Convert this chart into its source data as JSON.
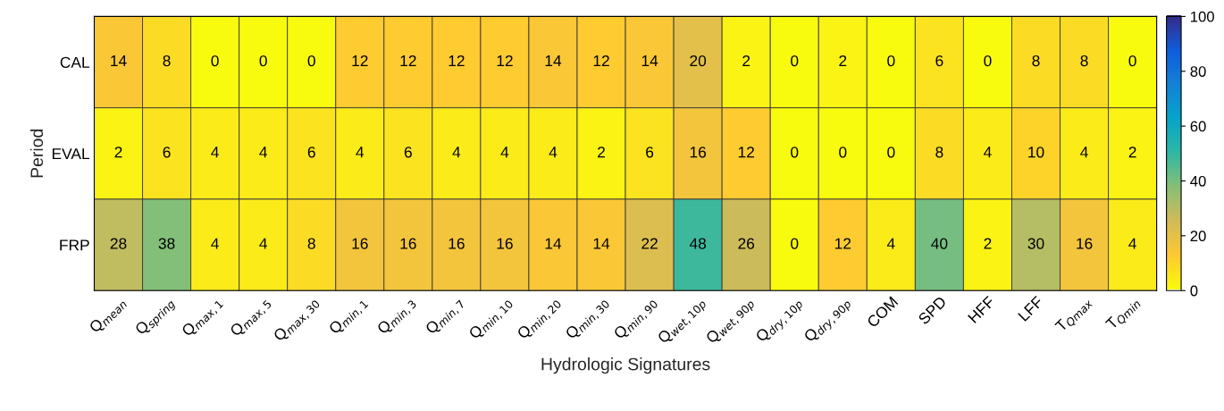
{
  "chart_data": {
    "type": "heatmap",
    "xlabel": "Hydrologic Signatures",
    "ylabel": "Period",
    "categories": [
      "Q$_{mean}$",
      "Q$_{spring}$",
      "Q$_{max,1}$",
      "Q$_{max,5}$",
      "Q$_{max,30}$",
      "Q$_{min,1}$",
      "Q$_{min,3}$",
      "Q$_{min,7}$",
      "Q$_{min,10}$",
      "Q$_{min,20}$",
      "Q$_{min,30}$",
      "Q$_{min,90}$",
      "Q$_{wet,10p}$",
      "Q$_{wet,90p}$",
      "Q$_{dry,10p}$",
      "Q$_{dry,90p}$",
      "COM",
      "SPD",
      "HFF",
      "LFF",
      "T$_{Qmax}$",
      "T$_{Qmin}$"
    ],
    "y_categories": [
      "CAL",
      "EVAL",
      "FRP"
    ],
    "cells": [
      [
        14,
        8,
        0,
        0,
        0,
        12,
        12,
        12,
        12,
        14,
        12,
        14,
        20,
        2,
        0,
        2,
        0,
        6,
        0,
        8,
        8,
        0
      ],
      [
        2,
        6,
        4,
        4,
        6,
        4,
        6,
        4,
        4,
        4,
        2,
        6,
        16,
        12,
        0,
        0,
        0,
        8,
        4,
        10,
        4,
        2
      ],
      [
        28,
        38,
        4,
        4,
        8,
        16,
        16,
        16,
        16,
        14,
        14,
        22,
        48,
        26,
        0,
        12,
        4,
        40,
        2,
        30,
        16,
        4
      ]
    ],
    "clim": [
      0,
      100
    ],
    "cticks": [
      0,
      20,
      40,
      60,
      80,
      100
    ],
    "data_labels": true,
    "grid": false
  }
}
